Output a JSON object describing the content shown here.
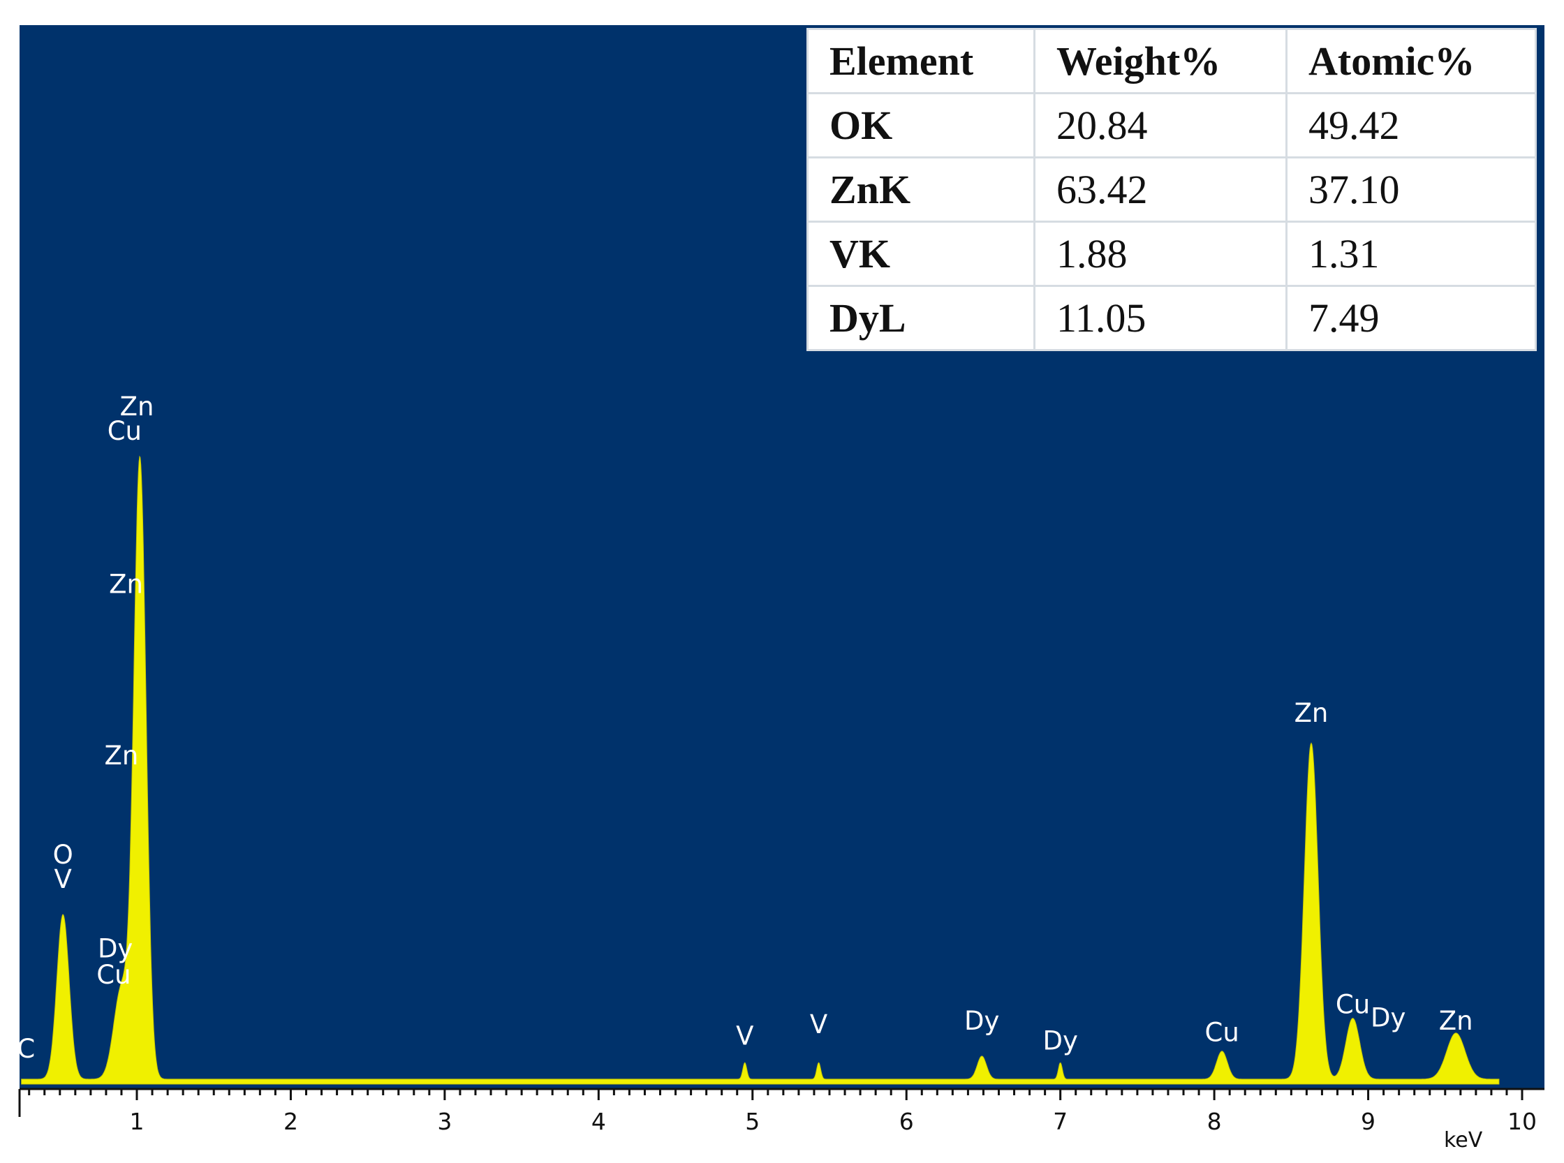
{
  "chart_data": {
    "type": "area",
    "xlabel": "",
    "xunit": "keV",
    "xlim": [
      0.25,
      10
    ],
    "x_ticks": [
      "1",
      "2",
      "3",
      "4",
      "5",
      "6",
      "7",
      "8",
      "9",
      "10"
    ],
    "background_color": "#00326b",
    "fill_color": "#f0f000",
    "baseline": 3,
    "peaks": [
      {
        "x": 0.52,
        "y": 100,
        "sigma": 0.04
      },
      {
        "x": 0.9,
        "y": 55,
        "sigma": 0.05
      },
      {
        "x": 1.02,
        "y": 375,
        "sigma": 0.04
      },
      {
        "x": 4.95,
        "y": 10,
        "sigma": 0.013
      },
      {
        "x": 5.43,
        "y": 10,
        "sigma": 0.013
      },
      {
        "x": 6.49,
        "y": 14,
        "sigma": 0.03
      },
      {
        "x": 7.0,
        "y": 10,
        "sigma": 0.013
      },
      {
        "x": 8.05,
        "y": 17,
        "sigma": 0.035
      },
      {
        "x": 8.63,
        "y": 204,
        "sigma": 0.045
      },
      {
        "x": 8.9,
        "y": 37,
        "sigma": 0.045
      },
      {
        "x": 9.57,
        "y": 28,
        "sigma": 0.06
      }
    ],
    "peak_labels": [
      {
        "text": "C",
        "x": 0.28,
        "y": 16
      },
      {
        "text": "O",
        "x": 0.52,
        "y": 134
      },
      {
        "text": "V",
        "x": 0.52,
        "y": 119
      },
      {
        "text": "Zn",
        "x": 1.0,
        "y": 406
      },
      {
        "text": "Cu",
        "x": 0.92,
        "y": 391
      },
      {
        "text": "Zn",
        "x": 0.93,
        "y": 298
      },
      {
        "text": "Zn",
        "x": 0.9,
        "y": 194
      },
      {
        "text": "Dy",
        "x": 0.86,
        "y": 77
      },
      {
        "text": "Cu",
        "x": 0.85,
        "y": 61
      },
      {
        "text": "V",
        "x": 4.95,
        "y": 24
      },
      {
        "text": "V",
        "x": 5.43,
        "y": 31
      },
      {
        "text": "Dy",
        "x": 6.49,
        "y": 33
      },
      {
        "text": "Dy",
        "x": 7.0,
        "y": 21
      },
      {
        "text": "Cu",
        "x": 8.05,
        "y": 26
      },
      {
        "text": "Zn",
        "x": 8.63,
        "y": 220
      },
      {
        "text": "Cu",
        "x": 8.9,
        "y": 43
      },
      {
        "text": "Dy",
        "x": 9.13,
        "y": 35
      },
      {
        "text": "Zn",
        "x": 9.57,
        "y": 33
      }
    ],
    "table": {
      "columns": [
        "Element",
        "Weight%",
        "Atomic%"
      ],
      "rows": [
        [
          "OK",
          "20.84",
          "49.42"
        ],
        [
          "ZnK",
          "63.42",
          "37.10"
        ],
        [
          "VK",
          "1.88",
          "1.31"
        ],
        [
          "DyL",
          "11.05",
          "7.49"
        ]
      ]
    }
  }
}
